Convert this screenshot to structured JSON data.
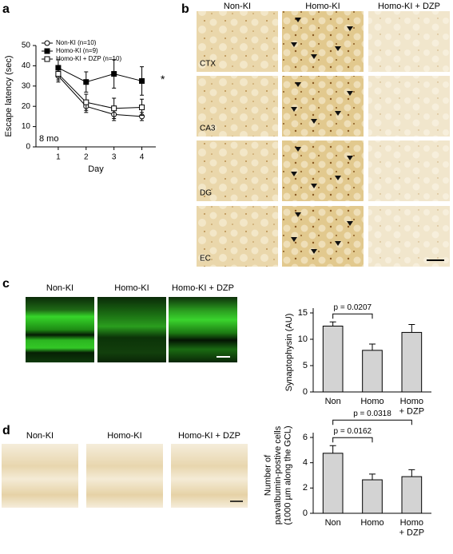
{
  "figure": {
    "panels": [
      "a",
      "b",
      "c",
      "d"
    ],
    "panel_b": {
      "columns": [
        "Non-KI",
        "Homo-KI",
        "Homo-KI + DZP"
      ],
      "rows": [
        "CTX",
        "CA3",
        "DG",
        "EC"
      ]
    },
    "panel_c": {
      "images": [
        "Non-KI",
        "Homo-KI",
        "Homo-KI + DZP"
      ]
    },
    "panel_d": {
      "images": [
        "Non-KI",
        "Homo-KI",
        "Homo-KI + DZP"
      ]
    }
  },
  "chart_data": [
    {
      "type": "line",
      "xlabel": "Day",
      "ylabel": "Escape latency (sec)",
      "x": [
        1,
        2,
        3,
        4
      ],
      "xlim": [
        0.2,
        4.5
      ],
      "xticks": [
        1,
        2,
        3,
        4
      ],
      "ylim": [
        0,
        50
      ],
      "yticks": [
        0,
        10,
        20,
        30,
        40,
        50
      ],
      "legend": "upper left",
      "annotations": [
        "8 mo",
        "*"
      ],
      "series": [
        {
          "name": "Non-KI  (n=10)",
          "color": "#000000",
          "marker": "open-circle",
          "values": [
            35,
            20,
            16,
            15
          ],
          "errors": [
            3,
            3,
            3,
            2
          ]
        },
        {
          "name": "Homo-KI  (n=9)",
          "color": "#000000",
          "marker": "filled-square",
          "values": [
            39,
            32,
            36,
            32.5
          ],
          "errors": [
            4,
            5,
            7,
            7
          ]
        },
        {
          "name": "Homo-KI + DZP (n=10)",
          "color": "#000000",
          "marker": "open-square",
          "values": [
            36,
            22,
            19,
            19.5
          ],
          "errors": [
            3,
            4,
            5,
            4
          ]
        }
      ]
    },
    {
      "type": "bar",
      "ylabel": "Synaptophysin (AU)",
      "categories": [
        "Non",
        "Homo",
        "Homo\n+ DZP"
      ],
      "values": [
        12.5,
        7.9,
        11.3
      ],
      "errors": [
        0.8,
        1.2,
        1.5
      ],
      "color": "#d3d3d3",
      "ylim": [
        0,
        15
      ],
      "yticks": [
        0,
        5,
        10,
        15
      ],
      "comparisons": [
        {
          "label": "p = 0.0207",
          "groups": [
            "Non",
            "Homo"
          ]
        }
      ]
    },
    {
      "type": "bar",
      "ylabel": "Number of\nparvalbumin-postive cells\n(1000 µm along the GCL)",
      "categories": [
        "Non",
        "Homo",
        "Homo\n+ DZP"
      ],
      "values": [
        4.75,
        2.65,
        2.9
      ],
      "errors": [
        0.6,
        0.45,
        0.55
      ],
      "color": "#d3d3d3",
      "ylim": [
        0,
        6
      ],
      "yticks": [
        0,
        2,
        4,
        6
      ],
      "comparisons": [
        {
          "label": "p = 0.0162",
          "groups": [
            "Non",
            "Homo"
          ]
        },
        {
          "label": "p = 0.0318",
          "groups": [
            "Non",
            "Homo\n+ DZP"
          ]
        }
      ]
    }
  ]
}
